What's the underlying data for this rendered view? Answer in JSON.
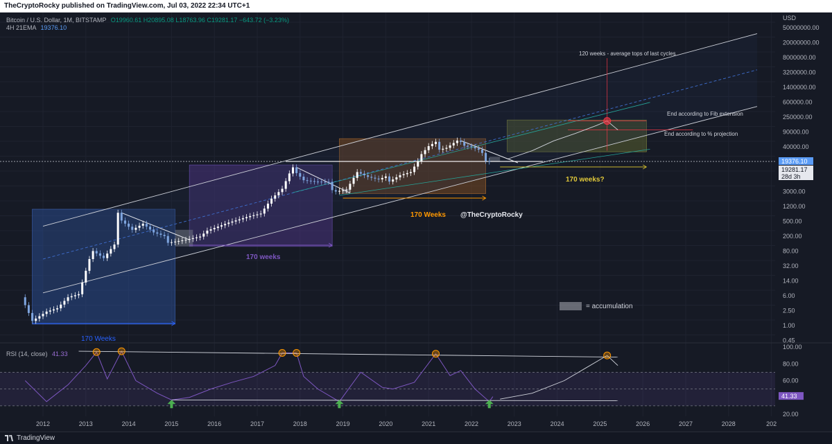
{
  "header": {
    "published": "TheCryptoRocky published on TradingView.com, Jul 03, 2022 22:34 UTC+1"
  },
  "legend": {
    "symbol": "Bitcoin / U.S. Dollar, 1M, BITSTAMP",
    "ohlc": "O19960.61  H20895.08  L18763.96  C19281.17  −643.72 (−3.23%)",
    "ema_label": "4H 21EMA",
    "ema_value": "19376.10",
    "rsi_label": "RSI (14, close)",
    "rsi_value": "41.33"
  },
  "price_axis": {
    "currency": "USD",
    "ticks": [
      "50000000.00",
      "20000000.00",
      "8000000.00",
      "3200000.00",
      "1400000.00",
      "600000.00",
      "250000.00",
      "90000.00",
      "40000.00",
      "19376.10",
      "7000.00",
      "3000.00",
      "1200.00",
      "500.00",
      "200.00",
      "80.00",
      "32.00",
      "14.00",
      "6.00",
      "2.50",
      "1.00",
      "0.45"
    ],
    "ema_tag": "19376.10",
    "close_tag": "19281.17",
    "countdown_tag": "28d 3h"
  },
  "rsi_axis": {
    "ticks": [
      "100.00",
      "80.00",
      "60.00",
      "40.00",
      "20.00"
    ],
    "value_tag": "41.33"
  },
  "time_axis": {
    "ticks": [
      "2012",
      "2013",
      "2014",
      "2015",
      "2016",
      "2017",
      "2018",
      "2019",
      "2020",
      "2021",
      "2022",
      "2023",
      "2024",
      "2025",
      "2026",
      "2027",
      "2028",
      "202"
    ]
  },
  "annotations": {
    "weeks_blue": "170 Weeks",
    "weeks_purple": "170 weeks",
    "weeks_orange": "170 Weeks",
    "weeks_yellow": "170 weeks?",
    "handle": "@TheCryptoRocky",
    "tops_note": "120 weeks - average tops of last cycles",
    "fib_note": "End according to Fib extension",
    "pct_note": "End according to % projection",
    "accumulation_legend": "= accumulation"
  },
  "footer": {
    "brand": "TradingView"
  },
  "colors": {
    "background": "#161a25",
    "up_candle": "#ffffff",
    "down_candle": "#7fa6e0",
    "ema_line": "#5b9cf6",
    "rsi_line": "#7e57c2",
    "blue_box": "#2a4a8c",
    "purple_box": "#4a3580",
    "orange_box": "#7a4a22",
    "yellow_box": "#5a6030",
    "arrow_green": "#4caf50",
    "highlight_red": "#f23645"
  },
  "chart_data": {
    "type": "candlestick",
    "title": "Bitcoin / U.S. Dollar, 1M, BITSTAMP",
    "y_scale": "log",
    "ylabel": "USD",
    "ylim": [
      0.45,
      50000000
    ],
    "x_range": [
      "2011-08",
      "2029-01"
    ],
    "price_path": [
      [
        "2011-08",
        11
      ],
      [
        "2011-11",
        3
      ],
      [
        "2012-03",
        5
      ],
      [
        "2012-06",
        6
      ],
      [
        "2012-09",
        11
      ],
      [
        "2012-12",
        13
      ],
      [
        "2013-03",
        90
      ],
      [
        "2013-04",
        140
      ],
      [
        "2013-07",
        95
      ],
      [
        "2013-10",
        200
      ],
      [
        "2013-11",
        1150
      ],
      [
        "2013-12",
        750
      ],
      [
        "2014-03",
        450
      ],
      [
        "2014-06",
        630
      ],
      [
        "2014-09",
        390
      ],
      [
        "2014-12",
        320
      ],
      [
        "2015-01",
        220
      ],
      [
        "2015-06",
        260
      ],
      [
        "2015-10",
        310
      ],
      [
        "2015-12",
        430
      ],
      [
        "2016-06",
        670
      ],
      [
        "2016-12",
        960
      ],
      [
        "2017-03",
        1100
      ],
      [
        "2017-06",
        2500
      ],
      [
        "2017-09",
        4300
      ],
      [
        "2017-11",
        10000
      ],
      [
        "2017-12",
        14000
      ],
      [
        "2018-01",
        10200
      ],
      [
        "2018-03",
        6900
      ],
      [
        "2018-06",
        6400
      ],
      [
        "2018-10",
        6300
      ],
      [
        "2018-11",
        4000
      ],
      [
        "2018-12",
        3700
      ],
      [
        "2019-03",
        4100
      ],
      [
        "2019-06",
        10800
      ],
      [
        "2019-09",
        8300
      ],
      [
        "2019-12",
        7200
      ],
      [
        "2020-02",
        8500
      ],
      [
        "2020-03",
        6400
      ],
      [
        "2020-06",
        9100
      ],
      [
        "2020-09",
        10800
      ],
      [
        "2020-11",
        19700
      ],
      [
        "2020-12",
        29000
      ],
      [
        "2021-02",
        45000
      ],
      [
        "2021-04",
        57000
      ],
      [
        "2021-05",
        37000
      ],
      [
        "2021-07",
        41000
      ],
      [
        "2021-10",
        61000
      ],
      [
        "2021-11",
        57000
      ],
      [
        "2021-12",
        46000
      ],
      [
        "2022-02",
        43000
      ],
      [
        "2022-04",
        37000
      ],
      [
        "2022-05",
        31000
      ],
      [
        "2022-06",
        19900
      ],
      [
        "2022-07",
        19281
      ]
    ],
    "ema_4h_21": 19376.1,
    "last_close": 19281.17,
    "rsi": {
      "label": "RSI (14, close)",
      "ylim": [
        20,
        100
      ],
      "bands": [
        70,
        50,
        30
      ],
      "current": 41.33,
      "path": [
        [
          "2011-08",
          60
        ],
        [
          "2012-02",
          35
        ],
        [
          "2012-08",
          55
        ],
        [
          "2013-01",
          78
        ],
        [
          "2013-04",
          94
        ],
        [
          "2013-07",
          62
        ],
        [
          "2013-11",
          95
        ],
        [
          "2014-03",
          60
        ],
        [
          "2014-09",
          45
        ],
        [
          "2015-01",
          37
        ],
        [
          "2015-06",
          40
        ],
        [
          "2015-12",
          50
        ],
        [
          "2016-06",
          58
        ],
        [
          "2016-12",
          65
        ],
        [
          "2017-06",
          78
        ],
        [
          "2017-08",
          93
        ],
        [
          "2017-12",
          93
        ],
        [
          "2018-02",
          65
        ],
        [
          "2018-06",
          50
        ],
        [
          "2018-12",
          35
        ],
        [
          "2019-06",
          70
        ],
        [
          "2019-12",
          52
        ],
        [
          "2020-03",
          50
        ],
        [
          "2020-09",
          58
        ],
        [
          "2021-03",
          92
        ],
        [
          "2021-07",
          66
        ],
        [
          "2021-10",
          72
        ],
        [
          "2022-02",
          50
        ],
        [
          "2022-06",
          35
        ],
        [
          "2022-07",
          41
        ]
      ],
      "projection": [
        [
          "2022-09",
          38
        ],
        [
          "2023-06",
          45
        ],
        [
          "2024-03",
          60
        ],
        [
          "2024-09",
          75
        ],
        [
          "2025-03",
          90
        ],
        [
          "2025-06",
          78
        ]
      ]
    },
    "markers": {
      "rsi_tops": [
        "2013-04",
        "2013-11",
        "2017-08",
        "2017-12",
        "2021-03",
        "2025-03"
      ],
      "rsi_bottoms": [
        "2015-01",
        "2018-12",
        "2022-06"
      ]
    },
    "projection_path": [
      [
        "2022-11",
        22000
      ],
      [
        "2023-06",
        35000
      ],
      [
        "2023-12",
        60000
      ],
      [
        "2024-06",
        90000
      ],
      [
        "2024-12",
        140000
      ],
      [
        "2025-03",
        180000
      ],
      [
        "2025-06",
        110000
      ]
    ],
    "projection_top": [
      "2025-03",
      180000
    ],
    "levels": {
      "fib_extension_end": 180000,
      "percent_projection_end": 110000,
      "support": 19376
    },
    "channel": {
      "upper": [
        [
          "2012-01",
          550
        ],
        [
          "2028-09",
          22000000
        ]
      ],
      "middle": [
        [
          "2012-01",
          90
        ],
        [
          "2028-09",
          3000000
        ]
      ],
      "lower": [
        [
          "2012-01",
          14
        ],
        [
          "2028-09",
          400000
        ]
      ]
    },
    "cycle_boxes": [
      {
        "color": "blue",
        "from": "2011-10",
        "to": "2015-02",
        "low": 2.5,
        "high": 1400
      },
      {
        "color": "purple",
        "from": "2015-06",
        "to": "2018-10",
        "low": 180,
        "high": 16000
      },
      {
        "color": "orange",
        "from": "2018-12",
        "to": "2022-05",
        "low": 3300,
        "high": 68000
      },
      {
        "color": "yellow",
        "from": "2022-11",
        "to": "2026-02",
        "low": 33000,
        "high": 190000
      }
    ],
    "accumulation_boxes": [
      {
        "from": "2015-02",
        "to": "2015-07",
        "low": 180,
        "high": 450
      },
      {
        "from": "2019-01",
        "to": "2019-03",
        "low": 3300,
        "high": 4300
      },
      {
        "from": "2022-06",
        "to": "2022-09",
        "low": 19000,
        "high": 25000
      }
    ]
  }
}
